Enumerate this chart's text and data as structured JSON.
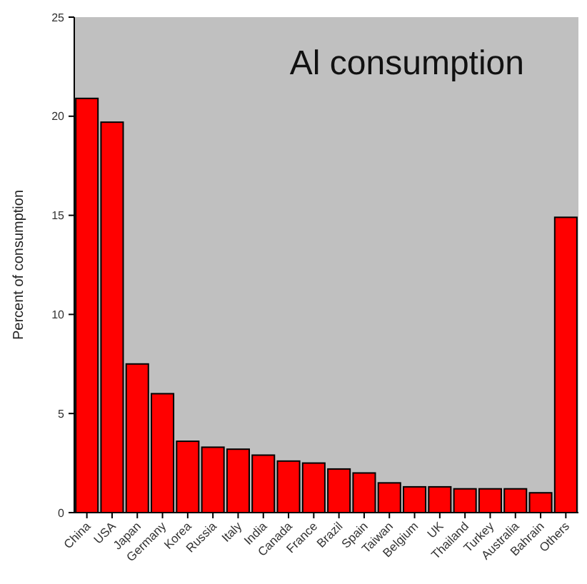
{
  "chart_data": {
    "type": "bar",
    "title": "Al consumption",
    "ylabel": "Percent of consumption",
    "categories": [
      "China",
      "USA",
      "Japan",
      "Germany",
      "Korea",
      "Russia",
      "Italy",
      "India",
      "Canada",
      "France",
      "Brazil",
      "Spain",
      "Taiwan",
      "Belgium",
      "UK",
      "Thailand",
      "Turkey",
      "Australia",
      "Bahrain",
      "Others"
    ],
    "values": [
      20.9,
      19.7,
      7.5,
      6.0,
      3.6,
      3.3,
      3.2,
      2.9,
      2.6,
      2.5,
      2.2,
      2.0,
      1.5,
      1.3,
      1.3,
      1.2,
      1.2,
      1.2,
      1.0,
      14.9
    ],
    "color": "#ff0000",
    "ylim": [
      0,
      25
    ],
    "yticks": [
      0,
      5,
      10,
      15,
      20,
      25
    ],
    "grid": false
  }
}
